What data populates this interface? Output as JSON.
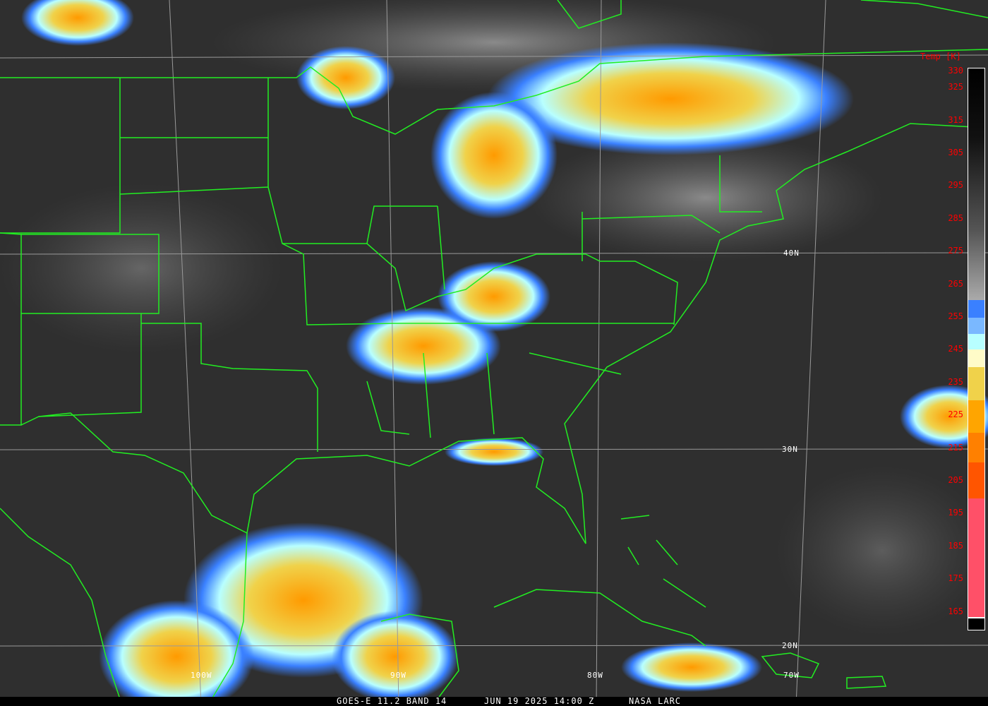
{
  "caption": {
    "satellite": "GOES-E 11.2 BAND 14",
    "datetime": "JUN 19 2025 14:00 Z",
    "credit": "NASA LARC"
  },
  "grid": {
    "latitudes": [
      "40N",
      "30N",
      "20N"
    ],
    "longitudes": [
      "100W",
      "90W",
      "80W",
      "70W"
    ]
  },
  "colorbar": {
    "title": "Temp [K]",
    "ticks": [
      "330",
      "325",
      "315",
      "305",
      "295",
      "285",
      "275",
      "265",
      "255",
      "245",
      "235",
      "225",
      "215",
      "205",
      "195",
      "185",
      "175",
      "165"
    ],
    "colors": {
      "cold_blue": "#3a80ff",
      "light_blue": "#7ab8ff",
      "cyan": "#b8ffff",
      "pale_yellow": "#fffbc8",
      "yellow": "#f0d24a",
      "orange": "#ffa500",
      "dark_orange": "#ff8000",
      "red_orange": "#ff5500",
      "pink": "#ff5068"
    }
  },
  "colors": {
    "boundaries": "#22ee22",
    "grid": "#9a9a9a",
    "labels": "#ff0000"
  }
}
